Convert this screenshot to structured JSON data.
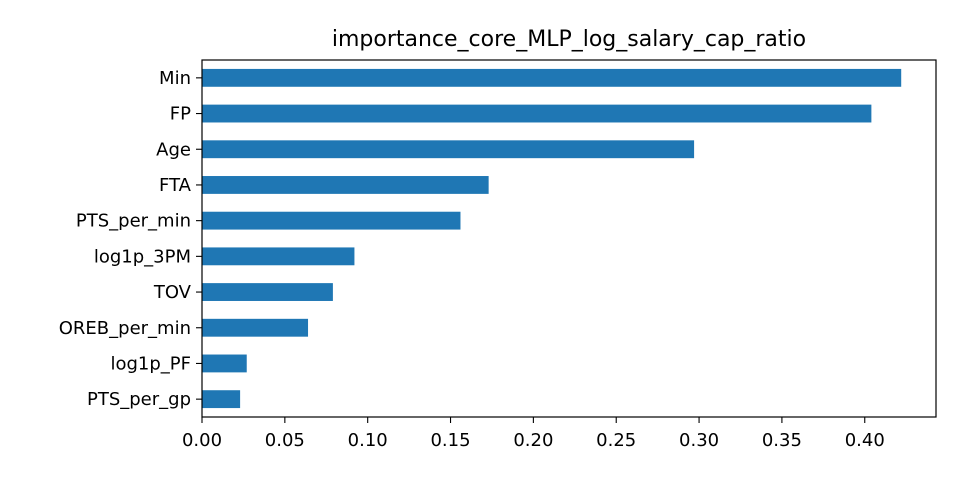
{
  "chart_data": {
    "type": "bar",
    "orientation": "horizontal",
    "title": "importance_core_MLP_log_salary_cap_ratio",
    "xlabel": "",
    "ylabel": "",
    "categories": [
      "PTS_per_gp",
      "log1p_PF",
      "OREB_per_min",
      "TOV",
      "log1p_3PM",
      "PTS_per_min",
      "FTA",
      "Age",
      "FP",
      "Min"
    ],
    "values": [
      0.023,
      0.027,
      0.064,
      0.079,
      0.092,
      0.156,
      0.173,
      0.297,
      0.404,
      0.422
    ],
    "xlim": [
      0.0,
      0.443
    ],
    "xticks": [
      "0.00",
      "0.05",
      "0.10",
      "0.15",
      "0.20",
      "0.25",
      "0.30",
      "0.35",
      "0.40"
    ],
    "bar_color": "#1f77b4",
    "grid": false,
    "legend": "none"
  }
}
